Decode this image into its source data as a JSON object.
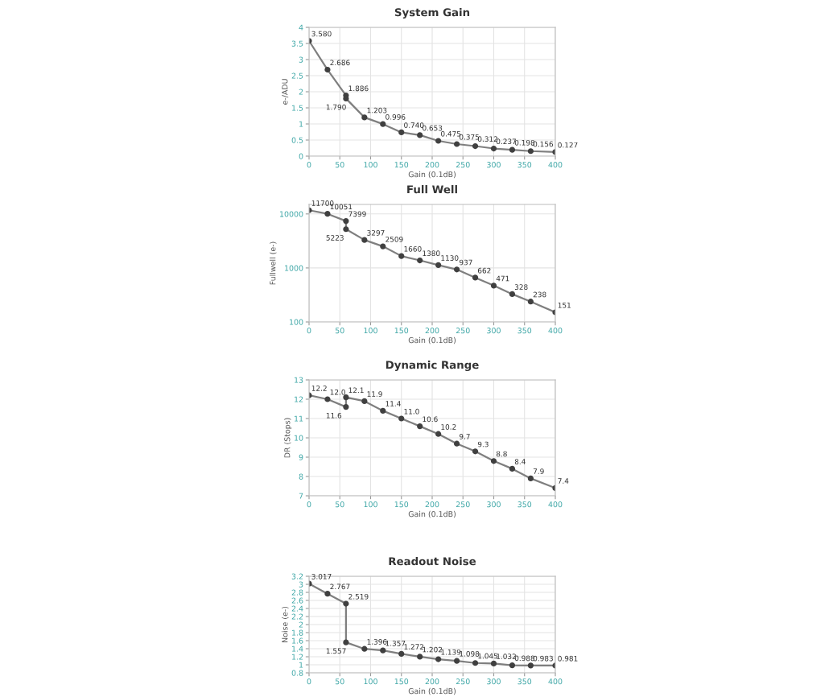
{
  "chart_data": [
    {
      "type": "line",
      "title": "System Gain",
      "xlabel": "Gain (0.1dB)",
      "ylabel": "e-/ADU",
      "x": [
        0,
        30,
        60,
        60,
        90,
        120,
        150,
        180,
        210,
        240,
        270,
        300,
        330,
        360,
        400
      ],
      "xlim": [
        0,
        400
      ],
      "xticks": [
        0,
        50,
        100,
        150,
        200,
        250,
        300,
        350,
        400
      ],
      "ylim": [
        0,
        4
      ],
      "yticks": [
        0,
        0.5,
        1,
        1.5,
        2,
        2.5,
        3,
        3.5,
        4
      ],
      "grid": true,
      "marker": "circle",
      "line_style": "solid",
      "series": [
        {
          "color": "#7f7f7f",
          "values": [
            3.58,
            2.686,
            1.886,
            1.79,
            1.203,
            0.996,
            0.74,
            0.653,
            0.475,
            0.375,
            0.312,
            0.237,
            0.198,
            0.156,
            0.127
          ],
          "value_labels": [
            "3.580",
            "2.686",
            "1.886",
            "1.790",
            "1.203",
            "0.996",
            "0.740",
            "0.653",
            "0.475",
            "0.375",
            "0.312",
            "0.237",
            "0.198",
            "0.156",
            "0.127"
          ]
        }
      ]
    },
    {
      "type": "line",
      "title": "Full Well",
      "xlabel": "Gain (0.1dB)",
      "ylabel": "Fullwell (e-)",
      "log": "y",
      "x": [
        0,
        30,
        60,
        60,
        90,
        120,
        150,
        180,
        210,
        240,
        270,
        300,
        330,
        360,
        400
      ],
      "xlim": [
        0,
        400
      ],
      "xticks": [
        0,
        50,
        100,
        150,
        200,
        250,
        300,
        350,
        400
      ],
      "ylim": [
        100,
        15000
      ],
      "yticks": [
        100,
        1000,
        10000
      ],
      "grid": true,
      "marker": "circle",
      "line_style": "solid",
      "series": [
        {
          "color": "#7f7f7f",
          "values": [
            11700,
            10051,
            7399,
            5223,
            3297,
            2509,
            1660,
            1380,
            1130,
            937,
            662,
            471,
            328,
            238,
            151
          ],
          "value_labels": [
            "11700",
            "10051",
            "7399",
            "5223",
            "3297",
            "2509",
            "1660",
            "1380",
            "1130",
            "937",
            "662",
            "471",
            "328",
            "238",
            "151"
          ]
        }
      ]
    },
    {
      "type": "line",
      "title": "Dynamic Range",
      "xlabel": "Gain (0.1dB)",
      "ylabel": "DR (Stops)",
      "x": [
        0,
        30,
        60,
        60,
        90,
        120,
        150,
        180,
        210,
        240,
        270,
        300,
        330,
        360,
        400
      ],
      "xlim": [
        0,
        400
      ],
      "xticks": [
        0,
        50,
        100,
        150,
        200,
        250,
        300,
        350,
        400
      ],
      "ylim": [
        7,
        13
      ],
      "yticks": [
        7,
        8,
        9,
        10,
        11,
        12,
        13
      ],
      "grid": true,
      "marker": "circle",
      "line_style": "solid",
      "series": [
        {
          "color": "#7f7f7f",
          "values": [
            12.2,
            12.0,
            11.6,
            12.1,
            11.9,
            11.4,
            11.0,
            10.6,
            10.2,
            9.7,
            9.3,
            8.8,
            8.4,
            7.9,
            7.4
          ],
          "value_labels": [
            "12.2",
            "12.0",
            "11.6",
            "12.1",
            "11.9",
            "11.4",
            "11.0",
            "10.6",
            "10.2",
            "9.7",
            "9.3",
            "8.8",
            "8.4",
            "7.9",
            "7.4"
          ]
        }
      ]
    },
    {
      "type": "line",
      "title": "Readout Noise",
      "xlabel": "Gain (0.1dB)",
      "ylabel": "Noise (e-)",
      "x": [
        0,
        30,
        60,
        60,
        90,
        120,
        150,
        180,
        210,
        240,
        270,
        300,
        330,
        360,
        400
      ],
      "xlim": [
        0,
        400
      ],
      "xticks": [
        0,
        50,
        100,
        150,
        200,
        250,
        300,
        350,
        400
      ],
      "ylim": [
        0.8,
        3.2
      ],
      "yticks": [
        0.8,
        1,
        1.2,
        1.4,
        1.6,
        1.8,
        2,
        2.2,
        2.4,
        2.6,
        2.8,
        3,
        3.2
      ],
      "grid": true,
      "marker": "circle",
      "line_style": "solid",
      "series": [
        {
          "color": "#7f7f7f",
          "values": [
            3.017,
            2.767,
            2.519,
            1.557,
            1.396,
            1.357,
            1.272,
            1.202,
            1.139,
            1.098,
            1.045,
            1.032,
            0.988,
            0.983,
            0.981
          ],
          "value_labels": [
            "3.017",
            "2.767",
            "2.519",
            "1.557",
            "1.396",
            "1.357",
            "1.272",
            "1.202",
            "1.139",
            "1.098",
            "1.045",
            "1.032",
            "0.988",
            "0.983",
            "0.981"
          ]
        }
      ]
    }
  ]
}
